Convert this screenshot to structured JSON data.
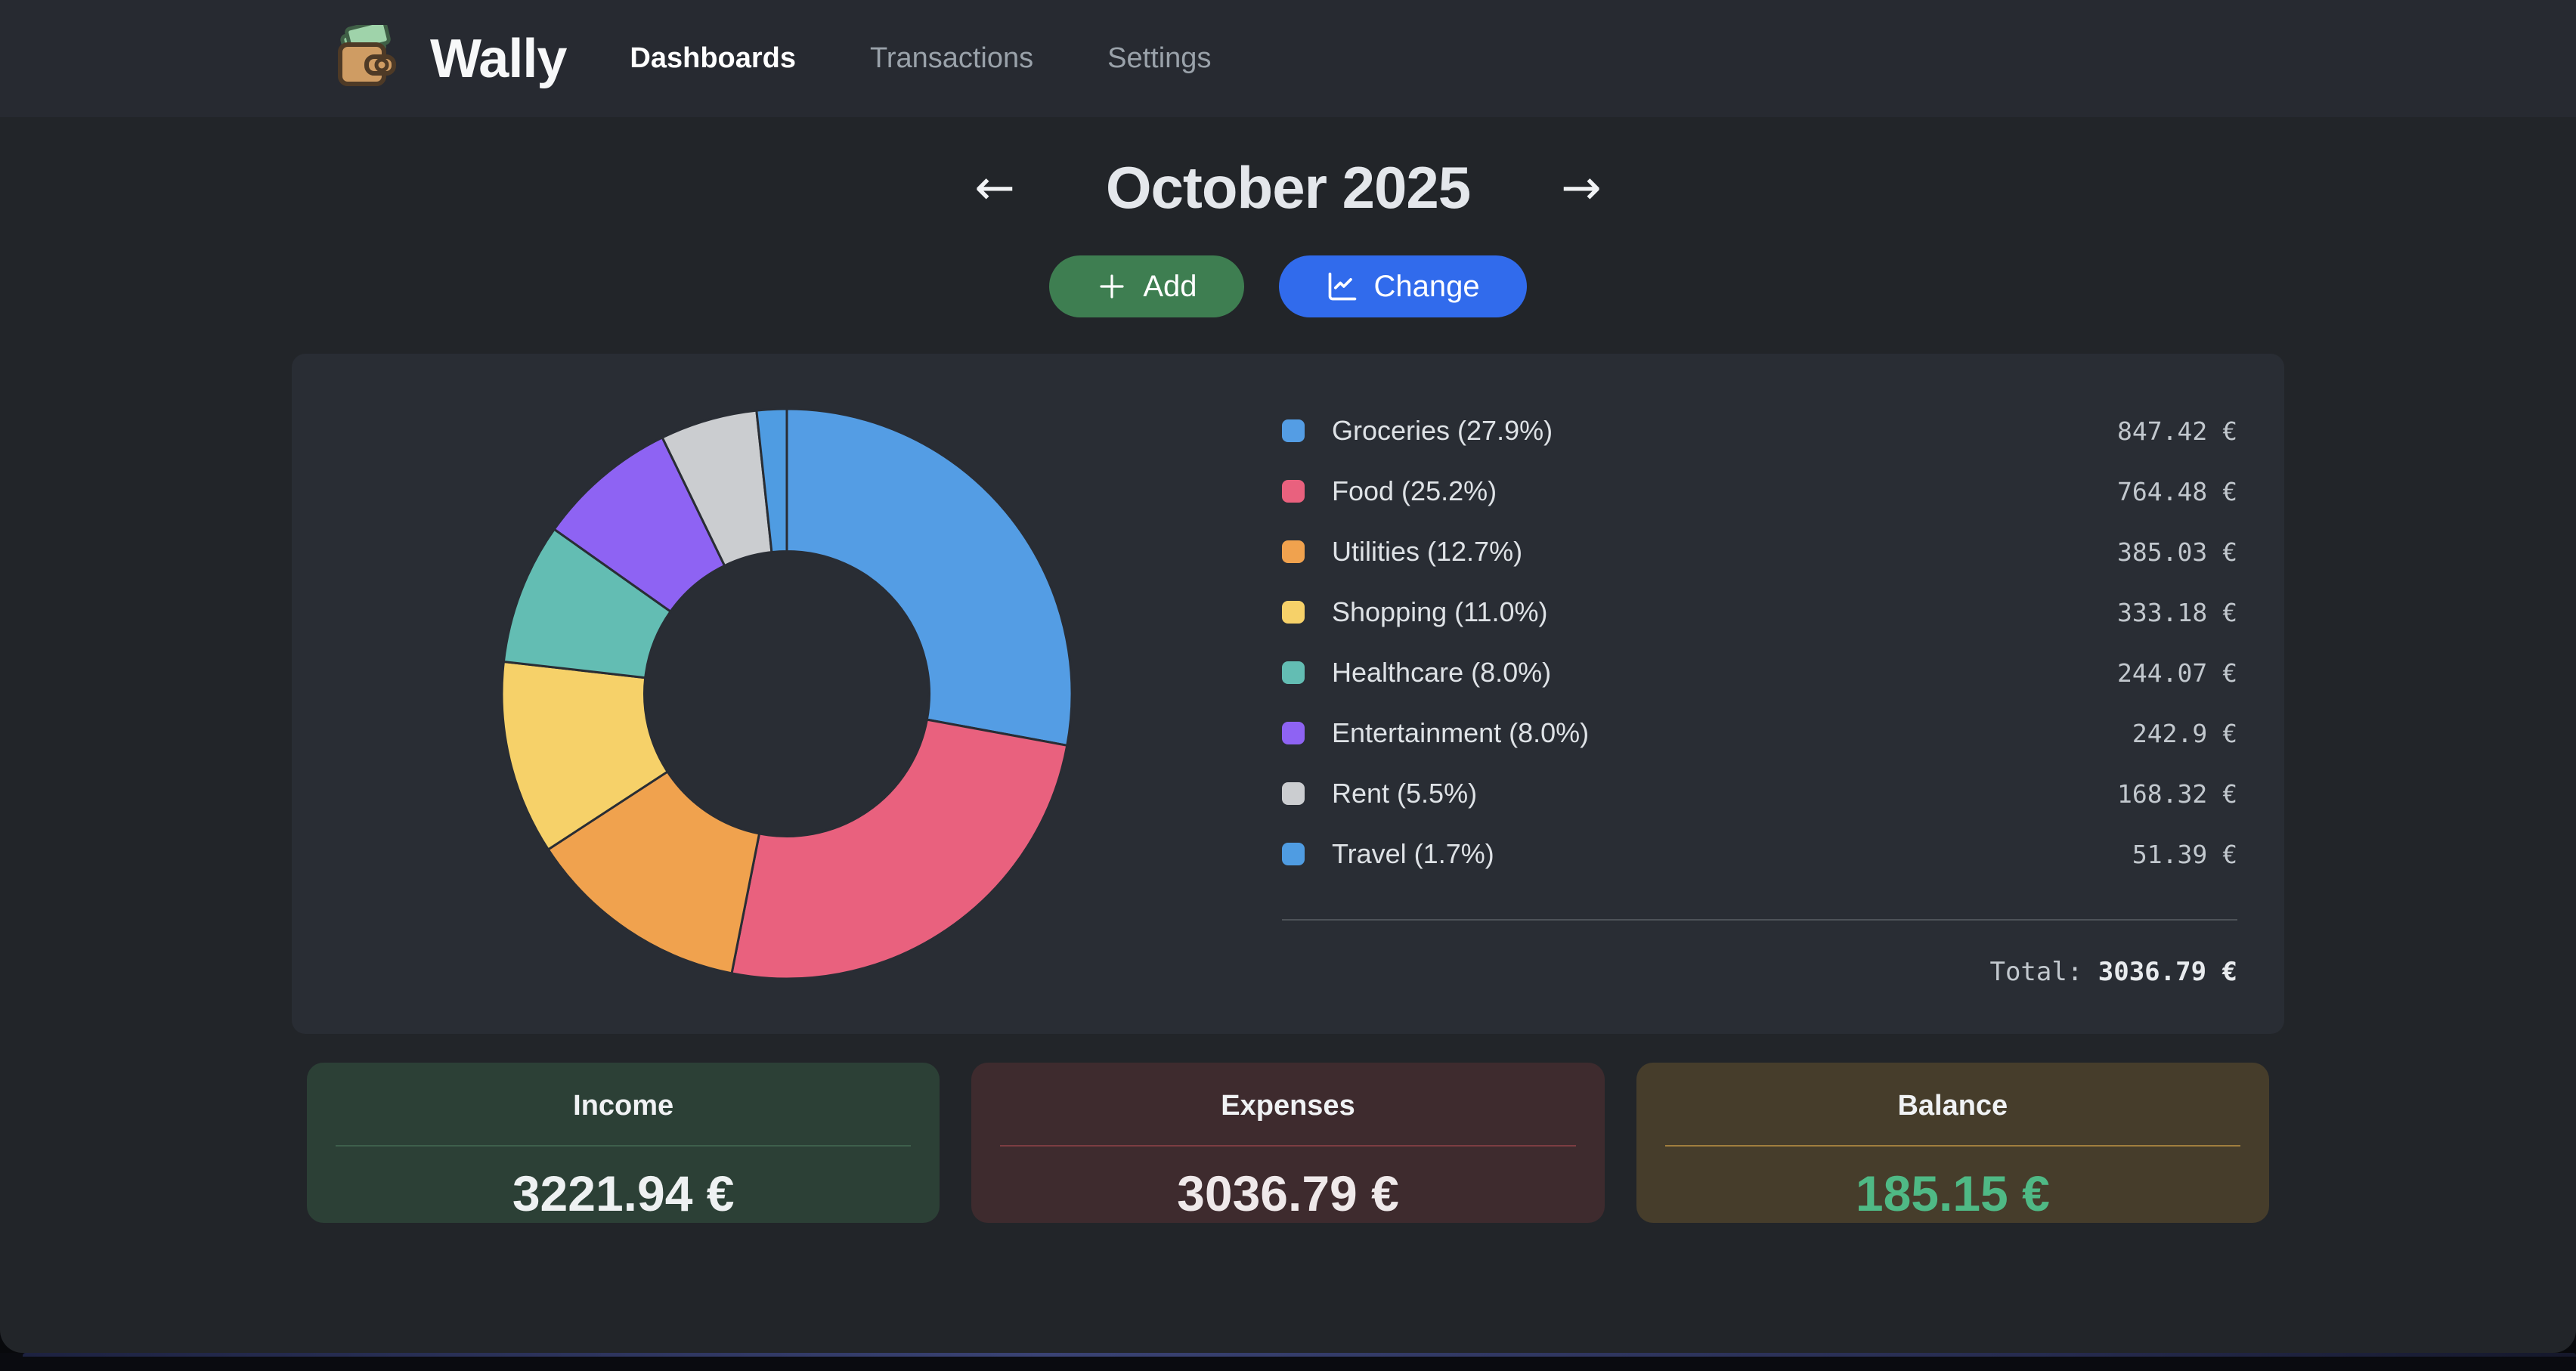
{
  "brand": {
    "name": "Wally",
    "logo_icon": "wallet-icon"
  },
  "nav": {
    "items": [
      {
        "label": "Dashboards",
        "active": true
      },
      {
        "label": "Transactions",
        "active": false
      },
      {
        "label": "Settings",
        "active": false
      }
    ]
  },
  "month_nav": {
    "title": "October 2025",
    "prev_icon": "←",
    "next_icon": "→"
  },
  "actions": {
    "add_label": "Add",
    "add_icon": "plus-icon",
    "change_label": "Change",
    "change_icon": "chart-line-icon"
  },
  "chart_data": {
    "type": "pie",
    "donut": true,
    "hole_ratio": 0.5,
    "start_angle_deg": -90,
    "direction": "clockwise",
    "categories": [
      "Groceries",
      "Food",
      "Utilities",
      "Shopping",
      "Healthcare",
      "Entertainment",
      "Rent",
      "Travel"
    ],
    "values": [
      847.42,
      764.48,
      385.03,
      333.18,
      244.07,
      242.9,
      168.32,
      51.39
    ],
    "percentages": [
      27.9,
      25.2,
      12.7,
      11.0,
      8.0,
      8.0,
      5.5,
      1.7
    ],
    "colors": [
      "#549de4",
      "#e9617e",
      "#f0a24e",
      "#f6d169",
      "#63bdb3",
      "#8e63f3",
      "#cbcdd0",
      "#4f9ce2"
    ],
    "legend_position": "right",
    "legend": [
      {
        "label": "Groceries (27.9%)",
        "value": "847.42 €"
      },
      {
        "label": "Food (25.2%)",
        "value": "764.48 €"
      },
      {
        "label": "Utilities (12.7%)",
        "value": "385.03 €"
      },
      {
        "label": "Shopping (11.0%)",
        "value": "333.18 €"
      },
      {
        "label": "Healthcare (8.0%)",
        "value": "244.07 €"
      },
      {
        "label": "Entertainment (8.0%)",
        "value": "242.9 €"
      },
      {
        "label": "Rent (5.5%)",
        "value": "168.32 €"
      },
      {
        "label": "Travel (1.7%)",
        "value": "51.39 €"
      }
    ],
    "total_label": "Total: ",
    "total_value": "3036.79 €"
  },
  "summary": {
    "cards": [
      {
        "title": "Income",
        "value": "3221.94 €",
        "bg": "#2c4036",
        "divider_color": "#3e5f4c",
        "value_color": "#eef1f2"
      },
      {
        "title": "Expenses",
        "value": "3036.79 €",
        "bg": "#3e2b2e",
        "divider_color": "#7c3d42",
        "value_color": "#efe9ea"
      },
      {
        "title": "Balance",
        "value": "185.15 €",
        "bg": "#463d2b",
        "divider_color": "#a17e3e",
        "value_color": "#4fb985"
      }
    ]
  },
  "colors": {
    "body_bg": "#222529",
    "header_bg": "#272a31",
    "chart_card_bg": "#292d34",
    "accent_green": "#3e7e51",
    "accent_blue": "#316bec",
    "balance_positive": "#4fb985"
  }
}
